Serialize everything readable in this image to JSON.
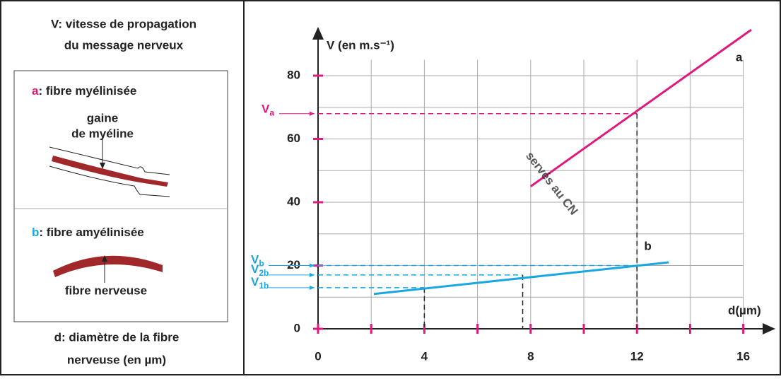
{
  "panel": {
    "header": [
      "V: vitesse de propagation",
      "du message nerveux"
    ],
    "a": {
      "letter": "a",
      "text": ": fibre myélinisée",
      "labels": [
        "gaine",
        "de myéline"
      ]
    },
    "b": {
      "letter": "b",
      "text": ": fibre amyélinisée",
      "labels": [
        "fibre nerveuse"
      ]
    },
    "footer": [
      "d: diamètre de la fibre",
      "nerveuse (en µm)"
    ]
  },
  "watermark": "servés au CN",
  "chart_data": {
    "type": "line",
    "x_label": "d(µm)",
    "y_label": "V (en m.s⁻¹)",
    "xlim": [
      0,
      17
    ],
    "ylim": [
      0,
      95
    ],
    "xticks": [
      0,
      4,
      8,
      12,
      16
    ],
    "xminor": [
      2,
      6,
      10,
      14
    ],
    "yticks": [
      0,
      20,
      40,
      60,
      80
    ],
    "yminor": [
      10,
      30,
      50,
      70
    ],
    "grid": true,
    "tick_color": "#e0197d",
    "series": [
      {
        "name": "a",
        "color": "#e0197d",
        "x": [
          8,
          16.3
        ],
        "values": [
          45,
          94.5
        ]
      },
      {
        "name": "b",
        "color": "#1aa6e0",
        "x": [
          2.1,
          13.2
        ],
        "values": [
          11,
          21
        ]
      }
    ],
    "refs": [
      {
        "label": "V",
        "sub": "a",
        "d": 12,
        "v": 68,
        "color": "#e0197d"
      },
      {
        "label": "V",
        "sub": "b",
        "d": 12,
        "v": 20,
        "color": "#1aa6e0"
      },
      {
        "label": "V",
        "sub": "2b",
        "d": 7.7,
        "v": 17,
        "color": "#1aa6e0"
      },
      {
        "label": "V",
        "sub": "1b",
        "d": 4,
        "v": 13,
        "color": "#1aa6e0"
      }
    ]
  }
}
